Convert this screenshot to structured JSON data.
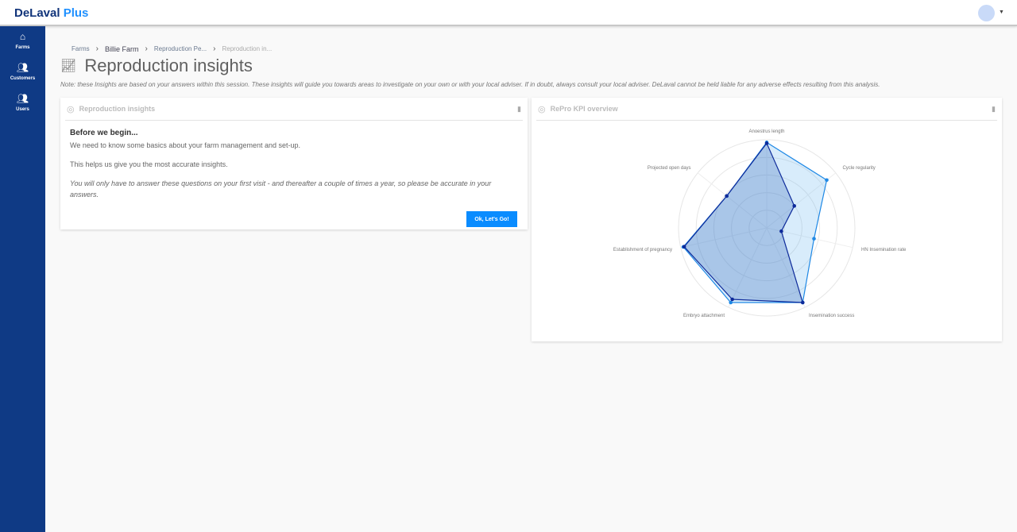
{
  "header": {
    "logo_main": "DeLaval",
    "logo_accent": "Plus",
    "avatar_icon": "user-avatar",
    "caret_icon": "caret-down-icon"
  },
  "sidebar": {
    "items": [
      {
        "label": "Farms",
        "icon": "farm-icon"
      },
      {
        "label": "Customers",
        "icon": "people-icon"
      },
      {
        "label": "Users",
        "icon": "people-icon"
      }
    ]
  },
  "breadcrumb": [
    "Farms",
    "Billie Farm",
    "Reproduction Pe...",
    "Reproduction in..."
  ],
  "page": {
    "title": "Reproduction insights",
    "title_icon": "trend-chart-icon",
    "note": "Note: these Insights are based on your answers within this session. These insights will guide you towards areas to investigate on your own or with your local adviser. If in doubt, always consult your local adviser. DeLaval cannot be held liable for any adverse effects resulting from this analysis."
  },
  "left_card": {
    "title": "Reproduction insights",
    "heading": "Before we begin...",
    "p1": "We need to know some basics about your farm management and set-up.",
    "p2": "This helps us give you the most accurate insights.",
    "p3": "You will only have to answer these questions on your first visit - and thereafter a couple of times a year, so please be accurate in your answers.",
    "button": "Ok, Let's Go!"
  },
  "right_card": {
    "title": "RePro KPI overview"
  },
  "colors": {
    "accent": "#0a8cff",
    "sidebar": "#0f3a85",
    "series_light": "#1e88e5",
    "series_dark": "#0d2a9a"
  },
  "chart_data": {
    "type": "radar",
    "axes": [
      "Anoestrus length",
      "Cycle regularity",
      "HN Insemination rate",
      "Insemination success",
      "Embryo attachment",
      "Establishment of pregnancy",
      "Projected open days"
    ],
    "range": [
      0,
      100
    ],
    "rings": 5,
    "series": [
      {
        "color": "#1e88e5",
        "values": [
          97,
          87,
          55,
          94,
          94,
          97,
          58
        ]
      },
      {
        "color": "#0d2a9a",
        "values": [
          96,
          40,
          17,
          94,
          90,
          96,
          58
        ]
      }
    ]
  }
}
